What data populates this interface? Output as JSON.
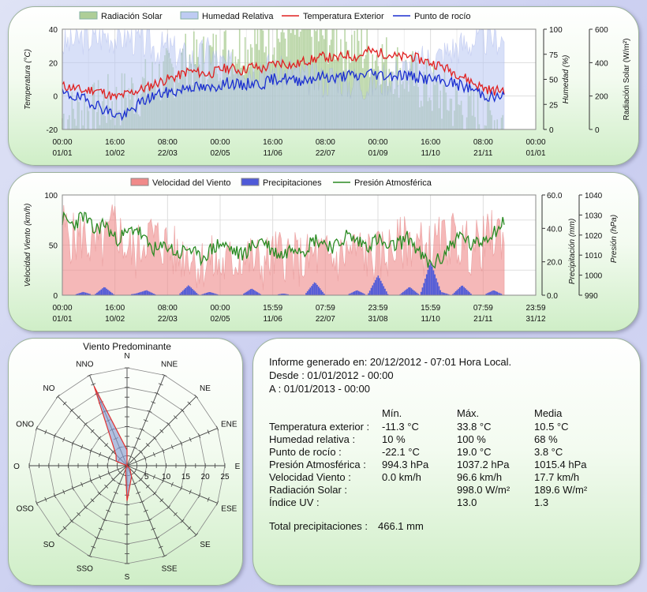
{
  "chart_data": [
    {
      "type": "line",
      "legend_placement": "top",
      "legend": [
        "Radiación Solar",
        "Humedad Relativa",
        "Temperatura Exterior",
        "Punto de rocío"
      ],
      "ylabel_left": "Temperatura (°C)",
      "ylabel_right1": "Humedad (%)",
      "ylabel_right2": "Radiación Solar (W/m²)",
      "y_left_ticks": [
        "40",
        "20",
        "0",
        "-20"
      ],
      "y_right1_ticks": [
        "100",
        "75",
        "50",
        "25",
        "0"
      ],
      "y_right2_ticks": [
        "600",
        "400",
        "200",
        "0"
      ],
      "x_ticks": [
        {
          "time": "00:00",
          "date": "01/01"
        },
        {
          "time": "16:00",
          "date": "10/02"
        },
        {
          "time": "08:00",
          "date": "22/03"
        },
        {
          "time": "00:00",
          "date": "02/05"
        },
        {
          "time": "16:00",
          "date": "11/06"
        },
        {
          "time": "08:00",
          "date": "22/07"
        },
        {
          "time": "00:00",
          "date": "01/09"
        },
        {
          "time": "16:00",
          "date": "11/10"
        },
        {
          "time": "08:00",
          "date": "21/11"
        },
        {
          "time": "00:00",
          "date": "01/01"
        }
      ],
      "ylim_left": [
        -20,
        40
      ],
      "ylim_right1": [
        0,
        100
      ],
      "ylim_right2": [
        0,
        600
      ],
      "colors": {
        "radiation": "#a6c98d",
        "humidity": "#b8c6f2",
        "temperature": "#e02020",
        "dewpoint": "#1b2fd0"
      },
      "series": [
        {
          "name": "Temperatura Exterior",
          "axis": "left",
          "values": [
            6,
            5,
            3,
            4,
            2,
            -1,
            1,
            3,
            5,
            8,
            10,
            12,
            15,
            14,
            13,
            16,
            17,
            15,
            18,
            16,
            19,
            20,
            18,
            21,
            22,
            24,
            22,
            25,
            23,
            27,
            26,
            25,
            23,
            24,
            22,
            20,
            18,
            15,
            12,
            8,
            5,
            3,
            4
          ]
        },
        {
          "name": "Punto de rocío",
          "axis": "left",
          "values": [
            1,
            0,
            -2,
            -4,
            -8,
            -11,
            -12,
            -6,
            -2,
            1,
            2,
            3,
            6,
            5,
            4,
            7,
            8,
            6,
            8,
            7,
            10,
            11,
            9,
            10,
            11,
            12,
            10,
            13,
            11,
            14,
            13,
            12,
            13,
            12,
            11,
            10,
            9,
            8,
            6,
            4,
            1,
            -1,
            0
          ]
        },
        {
          "name": "Humedad Relativa",
          "axis": "right1",
          "values": [
            85,
            88,
            92,
            90,
            95,
            92,
            94,
            90,
            85,
            80,
            82,
            75,
            70,
            72,
            78,
            65,
            62,
            68,
            60,
            66,
            58,
            55,
            60,
            52,
            50,
            48,
            55,
            45,
            50,
            44,
            48,
            52,
            58,
            62,
            66,
            70,
            74,
            80,
            84,
            88,
            90,
            92,
            90
          ]
        },
        {
          "name": "Radiación Solar",
          "axis": "right2",
          "values": [
            70,
            90,
            120,
            110,
            160,
            150,
            200,
            230,
            260,
            300,
            320,
            380,
            420,
            400,
            430,
            460,
            480,
            500,
            520,
            540,
            560,
            570,
            580,
            590,
            570,
            560,
            540,
            520,
            500,
            470,
            440,
            400,
            360,
            320,
            280,
            240,
            200,
            160,
            130,
            100,
            80,
            70,
            60
          ]
        }
      ]
    },
    {
      "type": "line",
      "legend_placement": "top",
      "legend": [
        "Velocidad del Viento",
        "Precipitaciones",
        "Presión Atmosférica"
      ],
      "ylabel_left": "Velocidad Viento (km/h)",
      "ylabel_right1": "Precipitación (mm)",
      "ylabel_right2": "Presión (hPa)",
      "y_left_ticks": [
        "100",
        "50",
        "0"
      ],
      "y_right1_ticks": [
        "60.0",
        "40.0",
        "20.0",
        "0.0"
      ],
      "y_right2_ticks": [
        "1040",
        "1030",
        "1020",
        "1010",
        "1000",
        "990"
      ],
      "x_ticks": [
        {
          "time": "00:00",
          "date": "01/01"
        },
        {
          "time": "16:00",
          "date": "10/02"
        },
        {
          "time": "08:00",
          "date": "22/03"
        },
        {
          "time": "00:00",
          "date": "02/05"
        },
        {
          "time": "15:59",
          "date": "11/06"
        },
        {
          "time": "07:59",
          "date": "22/07"
        },
        {
          "time": "23:59",
          "date": "31/08"
        },
        {
          "time": "15:59",
          "date": "11/10"
        },
        {
          "time": "07:59",
          "date": "21/11"
        },
        {
          "time": "23:59",
          "date": "31/12"
        }
      ],
      "ylim_left": [
        0,
        100
      ],
      "ylim_right1": [
        0,
        60
      ],
      "ylim_right2": [
        990,
        1040
      ],
      "colors": {
        "wind": "#f08a8a",
        "rain": "#4f5ad8",
        "pressure": "#2a8a22"
      },
      "series": [
        {
          "name": "Velocidad del Viento",
          "axis": "left",
          "values": [
            70,
            55,
            60,
            45,
            50,
            72,
            48,
            40,
            62,
            55,
            50,
            38,
            45,
            30,
            35,
            28,
            32,
            40,
            35,
            30,
            38,
            42,
            36,
            33,
            40,
            38,
            35,
            42,
            45,
            40,
            38,
            44,
            50,
            55,
            48,
            45,
            52,
            58,
            50,
            46,
            52,
            60,
            62
          ]
        },
        {
          "name": "Precipitaciones",
          "axis": "right1",
          "values": [
            0,
            0,
            2,
            0,
            5,
            0,
            0,
            1,
            3,
            0,
            0,
            0,
            6,
            0,
            2,
            0,
            0,
            0,
            4,
            0,
            0,
            1,
            0,
            0,
            8,
            0,
            0,
            0,
            3,
            0,
            12,
            0,
            0,
            5,
            0,
            20,
            2,
            0,
            6,
            0,
            0,
            3,
            0
          ]
        },
        {
          "name": "Presión Atmosférica",
          "axis": "right2",
          "values": [
            1028,
            1025,
            1030,
            1022,
            1026,
            1018,
            1020,
            1024,
            1016,
            1012,
            1015,
            1010,
            1014,
            1008,
            1012,
            1016,
            1013,
            1010,
            1014,
            1018,
            1012,
            1010,
            1015,
            1013,
            1018,
            1016,
            1014,
            1020,
            1017,
            1015,
            1018,
            1013,
            1016,
            1019,
            1010,
            1005,
            1008,
            1016,
            1020,
            1014,
            1018,
            1022,
            1026
          ]
        }
      ]
    },
    {
      "type": "radar",
      "title": "Viento Predominante",
      "directions": [
        "N",
        "NNE",
        "NE",
        "ENE",
        "E",
        "ESE",
        "SE",
        "SSE",
        "S",
        "SSO",
        "SO",
        "OSO",
        "O",
        "ONO",
        "NO",
        "NNO"
      ],
      "radial_ticks": [
        "5",
        "10",
        "15",
        "20",
        "25"
      ],
      "rmax": 25,
      "colors": {
        "fill": "#8ea0d6",
        "stroke": "#e03030"
      },
      "values": [
        4,
        0,
        0,
        0,
        0,
        0,
        1,
        3,
        9,
        1,
        0,
        0,
        0,
        3,
        4,
        22
      ]
    }
  ],
  "report": {
    "generated": "Informe generado en: 20/12/2012 - 07:01 Hora Local.",
    "from": "Desde : 01/01/2012 - 00:00",
    "to": "A : 01/01/2013 - 00:00",
    "col_min": "Mín.",
    "col_max": "Máx.",
    "col_avg": "Media",
    "rows": [
      {
        "label": "Temperatura exterior :",
        "min": "-11.3 °C",
        "max": "33.8 °C",
        "avg": "10.5 °C"
      },
      {
        "label": "Humedad relativa :",
        "min": "10 %",
        "max": "100 %",
        "avg": "68 %"
      },
      {
        "label": "Punto de rocío :",
        "min": "-22.1 °C",
        "max": "19.0 °C",
        "avg": "3.8 °C"
      },
      {
        "label": "Presión Atmosférica :",
        "min": "994.3 hPa",
        "max": "1037.2 hPa",
        "avg": "1015.4 hPa"
      },
      {
        "label": "Velocidad Viento :",
        "min": "0.0 km/h",
        "max": "96.6 km/h",
        "avg": "17.7 km/h"
      },
      {
        "label": "Radiación Solar :",
        "min": "",
        "max": "998.0 W/m²",
        "avg": "189.6 W/m²"
      },
      {
        "label": "Índice UV :",
        "min": "",
        "max": "13.0",
        "avg": "1.3"
      }
    ],
    "total_label": "Total precipitaciones :",
    "total_value": "466.1 mm"
  }
}
